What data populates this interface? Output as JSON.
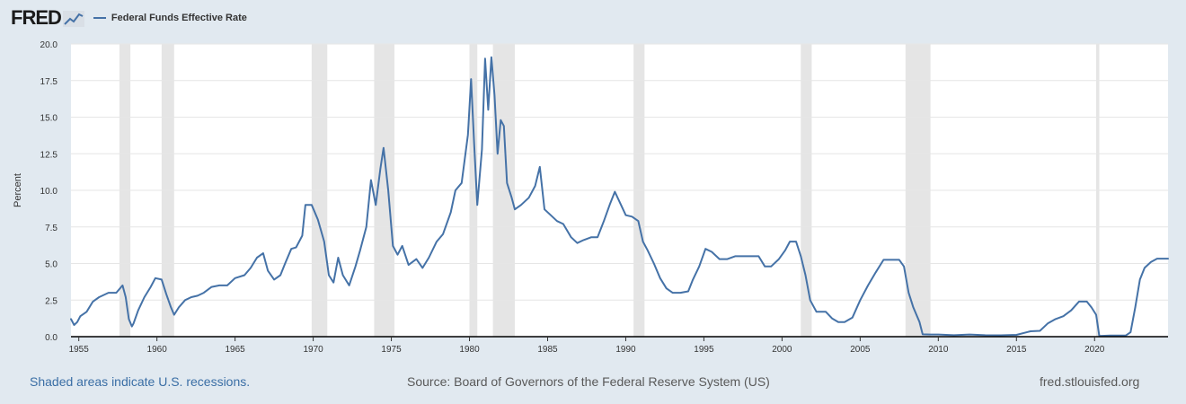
{
  "header": {
    "logo_text": "FRED",
    "legend_label": "Federal Funds Effective Rate"
  },
  "colors": {
    "series": "#4572a7",
    "recession": "#e5e5e5",
    "background": "#e1e9f0",
    "plot_background": "#ffffff",
    "link": "#3a6ea5"
  },
  "footer": {
    "left": "Shaded areas indicate U.S. recessions.",
    "middle": "Source: Board of Governors of the Federal Reserve System (US)",
    "right": "fred.stlouisfed.org"
  },
  "chart_data": {
    "type": "line",
    "title": "",
    "xlabel": "",
    "ylabel": "Percent",
    "xlim": [
      1954.5,
      2024.7
    ],
    "ylim": [
      0,
      20
    ],
    "grid": true,
    "legend_position": "top-left",
    "x_ticks": [
      "1955",
      "1960",
      "1965",
      "1970",
      "1975",
      "1980",
      "1985",
      "1990",
      "1995",
      "2000",
      "2005",
      "2010",
      "2015",
      "2020"
    ],
    "y_ticks": [
      "0.0",
      "2.5",
      "5.0",
      "7.5",
      "10.0",
      "12.5",
      "15.0",
      "17.5",
      "20.0"
    ],
    "recessions": [
      [
        1957.6,
        1958.3
      ],
      [
        1960.3,
        1961.1
      ],
      [
        1969.9,
        1970.9
      ],
      [
        1973.9,
        1975.2
      ],
      [
        1980.0,
        1980.5
      ],
      [
        1981.5,
        1982.9
      ],
      [
        1990.5,
        1991.2
      ],
      [
        2001.2,
        2001.9
      ],
      [
        2007.9,
        2009.5
      ],
      [
        2020.1,
        2020.3
      ]
    ],
    "series": [
      {
        "name": "Federal Funds Effective Rate",
        "x": [
          1954.5,
          1954.7,
          1954.9,
          1955.1,
          1955.5,
          1955.9,
          1956.3,
          1956.9,
          1957.4,
          1957.8,
          1958.0,
          1958.2,
          1958.4,
          1958.5,
          1958.8,
          1959.2,
          1959.6,
          1959.9,
          1960.3,
          1960.6,
          1960.9,
          1961.1,
          1961.4,
          1961.8,
          1962.2,
          1962.6,
          1963.0,
          1963.5,
          1964.0,
          1964.5,
          1965.0,
          1965.6,
          1966.0,
          1966.4,
          1966.8,
          1967.1,
          1967.5,
          1967.9,
          1968.2,
          1968.6,
          1968.9,
          1969.3,
          1969.5,
          1969.9,
          1970.3,
          1970.7,
          1971.0,
          1971.3,
          1971.6,
          1971.9,
          1972.3,
          1972.7,
          1973.0,
          1973.4,
          1973.7,
          1974.0,
          1974.3,
          1974.5,
          1974.8,
          1975.1,
          1975.4,
          1975.7,
          1976.1,
          1976.6,
          1977.0,
          1977.4,
          1977.9,
          1978.3,
          1978.8,
          1979.1,
          1979.5,
          1979.9,
          1980.1,
          1980.3,
          1980.5,
          1980.8,
          1981.0,
          1981.2,
          1981.4,
          1981.6,
          1981.8,
          1982.0,
          1982.2,
          1982.4,
          1982.7,
          1982.9,
          1983.3,
          1983.8,
          1984.2,
          1984.5,
          1984.8,
          1985.2,
          1985.6,
          1986.0,
          1986.5,
          1986.9,
          1987.3,
          1987.8,
          1988.2,
          1988.6,
          1989.0,
          1989.3,
          1989.7,
          1990.0,
          1990.4,
          1990.8,
          1991.1,
          1991.4,
          1991.8,
          1992.2,
          1992.6,
          1993.0,
          1993.5,
          1994.0,
          1994.3,
          1994.7,
          1995.1,
          1995.5,
          1996.0,
          1996.5,
          1997.0,
          1997.5,
          1998.0,
          1998.5,
          1998.9,
          1999.3,
          1999.8,
          2000.2,
          2000.5,
          2000.9,
          2001.2,
          2001.5,
          2001.8,
          2002.2,
          2002.8,
          2003.2,
          2003.6,
          2004.0,
          2004.5,
          2005.0,
          2005.5,
          2006.0,
          2006.5,
          2007.0,
          2007.5,
          2007.8,
          2008.1,
          2008.4,
          2008.8,
          2009.0,
          2009.5,
          2010.0,
          2011.0,
          2012.0,
          2013.0,
          2014.0,
          2015.0,
          2015.9,
          2016.5,
          2017.0,
          2017.5,
          2018.0,
          2018.5,
          2019.0,
          2019.5,
          2019.8,
          2020.1,
          2020.3,
          2021.0,
          2022.0,
          2022.3,
          2022.6,
          2022.9,
          2023.2,
          2023.6,
          2024.0,
          2024.7
        ],
        "values": [
          1.2,
          0.8,
          1.0,
          1.4,
          1.7,
          2.4,
          2.7,
          3.0,
          3.0,
          3.5,
          2.7,
          1.2,
          0.7,
          0.9,
          1.8,
          2.7,
          3.4,
          4.0,
          3.9,
          2.9,
          2.0,
          1.5,
          2.0,
          2.5,
          2.7,
          2.8,
          3.0,
          3.4,
          3.5,
          3.5,
          4.0,
          4.2,
          4.7,
          5.4,
          5.7,
          4.5,
          3.9,
          4.2,
          5.0,
          6.0,
          6.1,
          6.9,
          9.0,
          9.0,
          8.0,
          6.5,
          4.2,
          3.7,
          5.4,
          4.2,
          3.5,
          4.8,
          5.9,
          7.5,
          10.7,
          9.0,
          11.5,
          12.9,
          10.0,
          6.2,
          5.6,
          6.2,
          4.9,
          5.3,
          4.7,
          5.4,
          6.5,
          7.0,
          8.5,
          10.0,
          10.5,
          13.8,
          17.6,
          13.2,
          9.0,
          12.8,
          19.0,
          15.5,
          19.1,
          16.5,
          12.5,
          14.8,
          14.4,
          10.5,
          9.5,
          8.7,
          9.0,
          9.5,
          10.3,
          11.6,
          8.7,
          8.3,
          7.9,
          7.7,
          6.8,
          6.4,
          6.6,
          6.8,
          6.8,
          7.9,
          9.1,
          9.9,
          9.0,
          8.3,
          8.2,
          7.9,
          6.5,
          5.9,
          5.0,
          4.0,
          3.3,
          3.0,
          3.0,
          3.1,
          3.9,
          4.8,
          6.0,
          5.8,
          5.3,
          5.3,
          5.5,
          5.5,
          5.5,
          5.5,
          4.8,
          4.8,
          5.3,
          5.9,
          6.5,
          6.5,
          5.5,
          4.2,
          2.5,
          1.7,
          1.7,
          1.25,
          1.0,
          1.0,
          1.3,
          2.5,
          3.5,
          4.4,
          5.25,
          5.25,
          5.25,
          4.8,
          3.0,
          2.0,
          1.0,
          0.16,
          0.15,
          0.15,
          0.1,
          0.15,
          0.1,
          0.09,
          0.12,
          0.37,
          0.4,
          0.9,
          1.2,
          1.4,
          1.8,
          2.4,
          2.4,
          2.0,
          1.5,
          0.05,
          0.08,
          0.08,
          0.3,
          2.0,
          3.9,
          4.7,
          5.1,
          5.33,
          5.33
        ]
      }
    ]
  }
}
